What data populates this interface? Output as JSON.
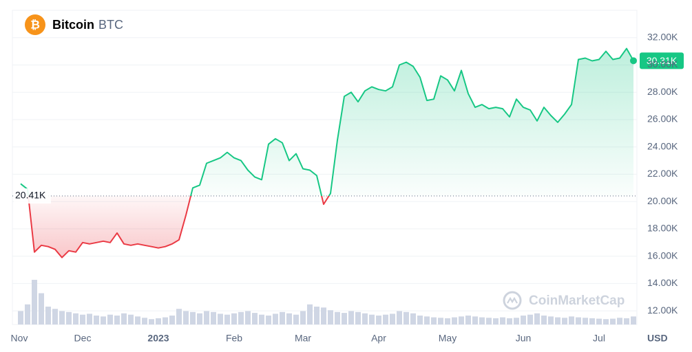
{
  "chart_data": {
    "type": "line",
    "title": "Bitcoin",
    "subtitle": "BTC",
    "currency": "USD",
    "watermark": "CoinMarketCap",
    "color": "#16c784",
    "down_color": "#ea3943",
    "volume_color": "#cfd6e4",
    "grid": true,
    "baseline": {
      "value": 20410,
      "label": "20.41K"
    },
    "xlim": [
      0,
      89
    ],
    "xticks": [
      {
        "value": 0,
        "label": "Nov"
      },
      {
        "value": 9,
        "label": "Dec"
      },
      {
        "value": 20,
        "label": "2023"
      },
      {
        "value": 31,
        "label": "Feb"
      },
      {
        "value": 41,
        "label": "Mar"
      },
      {
        "value": 52,
        "label": "Apr"
      },
      {
        "value": 62,
        "label": "May"
      },
      {
        "value": 73,
        "label": "Jun"
      },
      {
        "value": 84,
        "label": "Jul"
      }
    ],
    "ylim": [
      11000,
      34000
    ],
    "yticks": [
      {
        "value": 12000,
        "label": "12.00K"
      },
      {
        "value": 14000,
        "label": "14.00K"
      },
      {
        "value": 16000,
        "label": "16.00K"
      },
      {
        "value": 18000,
        "label": "18.00K"
      },
      {
        "value": 20000,
        "label": "20.00K"
      },
      {
        "value": 22000,
        "label": "22.00K"
      },
      {
        "value": 24000,
        "label": "24.00K"
      },
      {
        "value": 26000,
        "label": "26.00K"
      },
      {
        "value": 28000,
        "label": "28.00K"
      },
      {
        "value": 30000,
        "label": "30.00K"
      },
      {
        "value": 32000,
        "label": "32.00K"
      }
    ],
    "values": [
      21300,
      20900,
      16300,
      16800,
      16700,
      16500,
      15900,
      16400,
      16300,
      17000,
      16900,
      17000,
      17100,
      17000,
      17700,
      16900,
      16800,
      16900,
      16800,
      16700,
      16600,
      16700,
      16900,
      17200,
      19000,
      21000,
      21200,
      22800,
      23000,
      23200,
      23600,
      23200,
      23000,
      22300,
      21800,
      21600,
      24200,
      24600,
      24300,
      23000,
      23500,
      22400,
      22300,
      21900,
      19800,
      20600,
      24500,
      27700,
      28000,
      27300,
      28100,
      28400,
      28200,
      28100,
      28400,
      30000,
      30200,
      29900,
      29100,
      27400,
      27500,
      29200,
      28900,
      28100,
      29600,
      27900,
      26900,
      27100,
      26800,
      26900,
      26800,
      26200,
      27500,
      26900,
      26700,
      25900,
      26900,
      26300,
      25800,
      26400,
      27100,
      30400,
      30500,
      30300,
      30400,
      31000,
      30400,
      30500,
      31200,
      30310
    ],
    "value_labels": [
      null,
      null,
      null,
      null,
      null,
      null,
      null,
      null,
      null,
      null,
      null,
      null,
      null,
      null,
      null,
      null,
      null,
      null,
      null,
      null,
      null,
      null,
      null,
      null,
      null,
      null,
      null,
      null,
      null,
      null,
      null,
      null,
      null,
      null,
      null,
      null,
      null,
      null,
      null,
      null,
      null,
      null,
      null,
      null,
      null,
      null,
      null,
      null,
      null,
      null,
      null,
      null,
      null,
      null,
      null,
      null,
      null,
      null,
      null,
      null,
      null,
      null,
      null,
      null,
      null,
      null,
      null,
      null,
      null,
      null,
      null,
      null,
      null,
      null,
      null,
      null,
      null,
      null,
      null,
      null,
      null,
      null,
      null,
      null,
      null,
      null,
      null,
      null,
      null,
      "30.31K"
    ],
    "volume": [
      30,
      45,
      100,
      70,
      40,
      35,
      30,
      28,
      25,
      22,
      24,
      20,
      18,
      22,
      20,
      25,
      22,
      18,
      15,
      12,
      14,
      16,
      20,
      35,
      30,
      28,
      25,
      30,
      28,
      24,
      22,
      25,
      28,
      30,
      26,
      22,
      20,
      24,
      28,
      25,
      22,
      30,
      45,
      40,
      38,
      32,
      28,
      26,
      30,
      28,
      25,
      22,
      20,
      22,
      24,
      30,
      28,
      25,
      20,
      18,
      16,
      15,
      14,
      16,
      18,
      20,
      18,
      16,
      15,
      14,
      16,
      14,
      15,
      20,
      22,
      25,
      20,
      18,
      16,
      15,
      18,
      16,
      15,
      14,
      13,
      12,
      13,
      15,
      14,
      18
    ]
  }
}
